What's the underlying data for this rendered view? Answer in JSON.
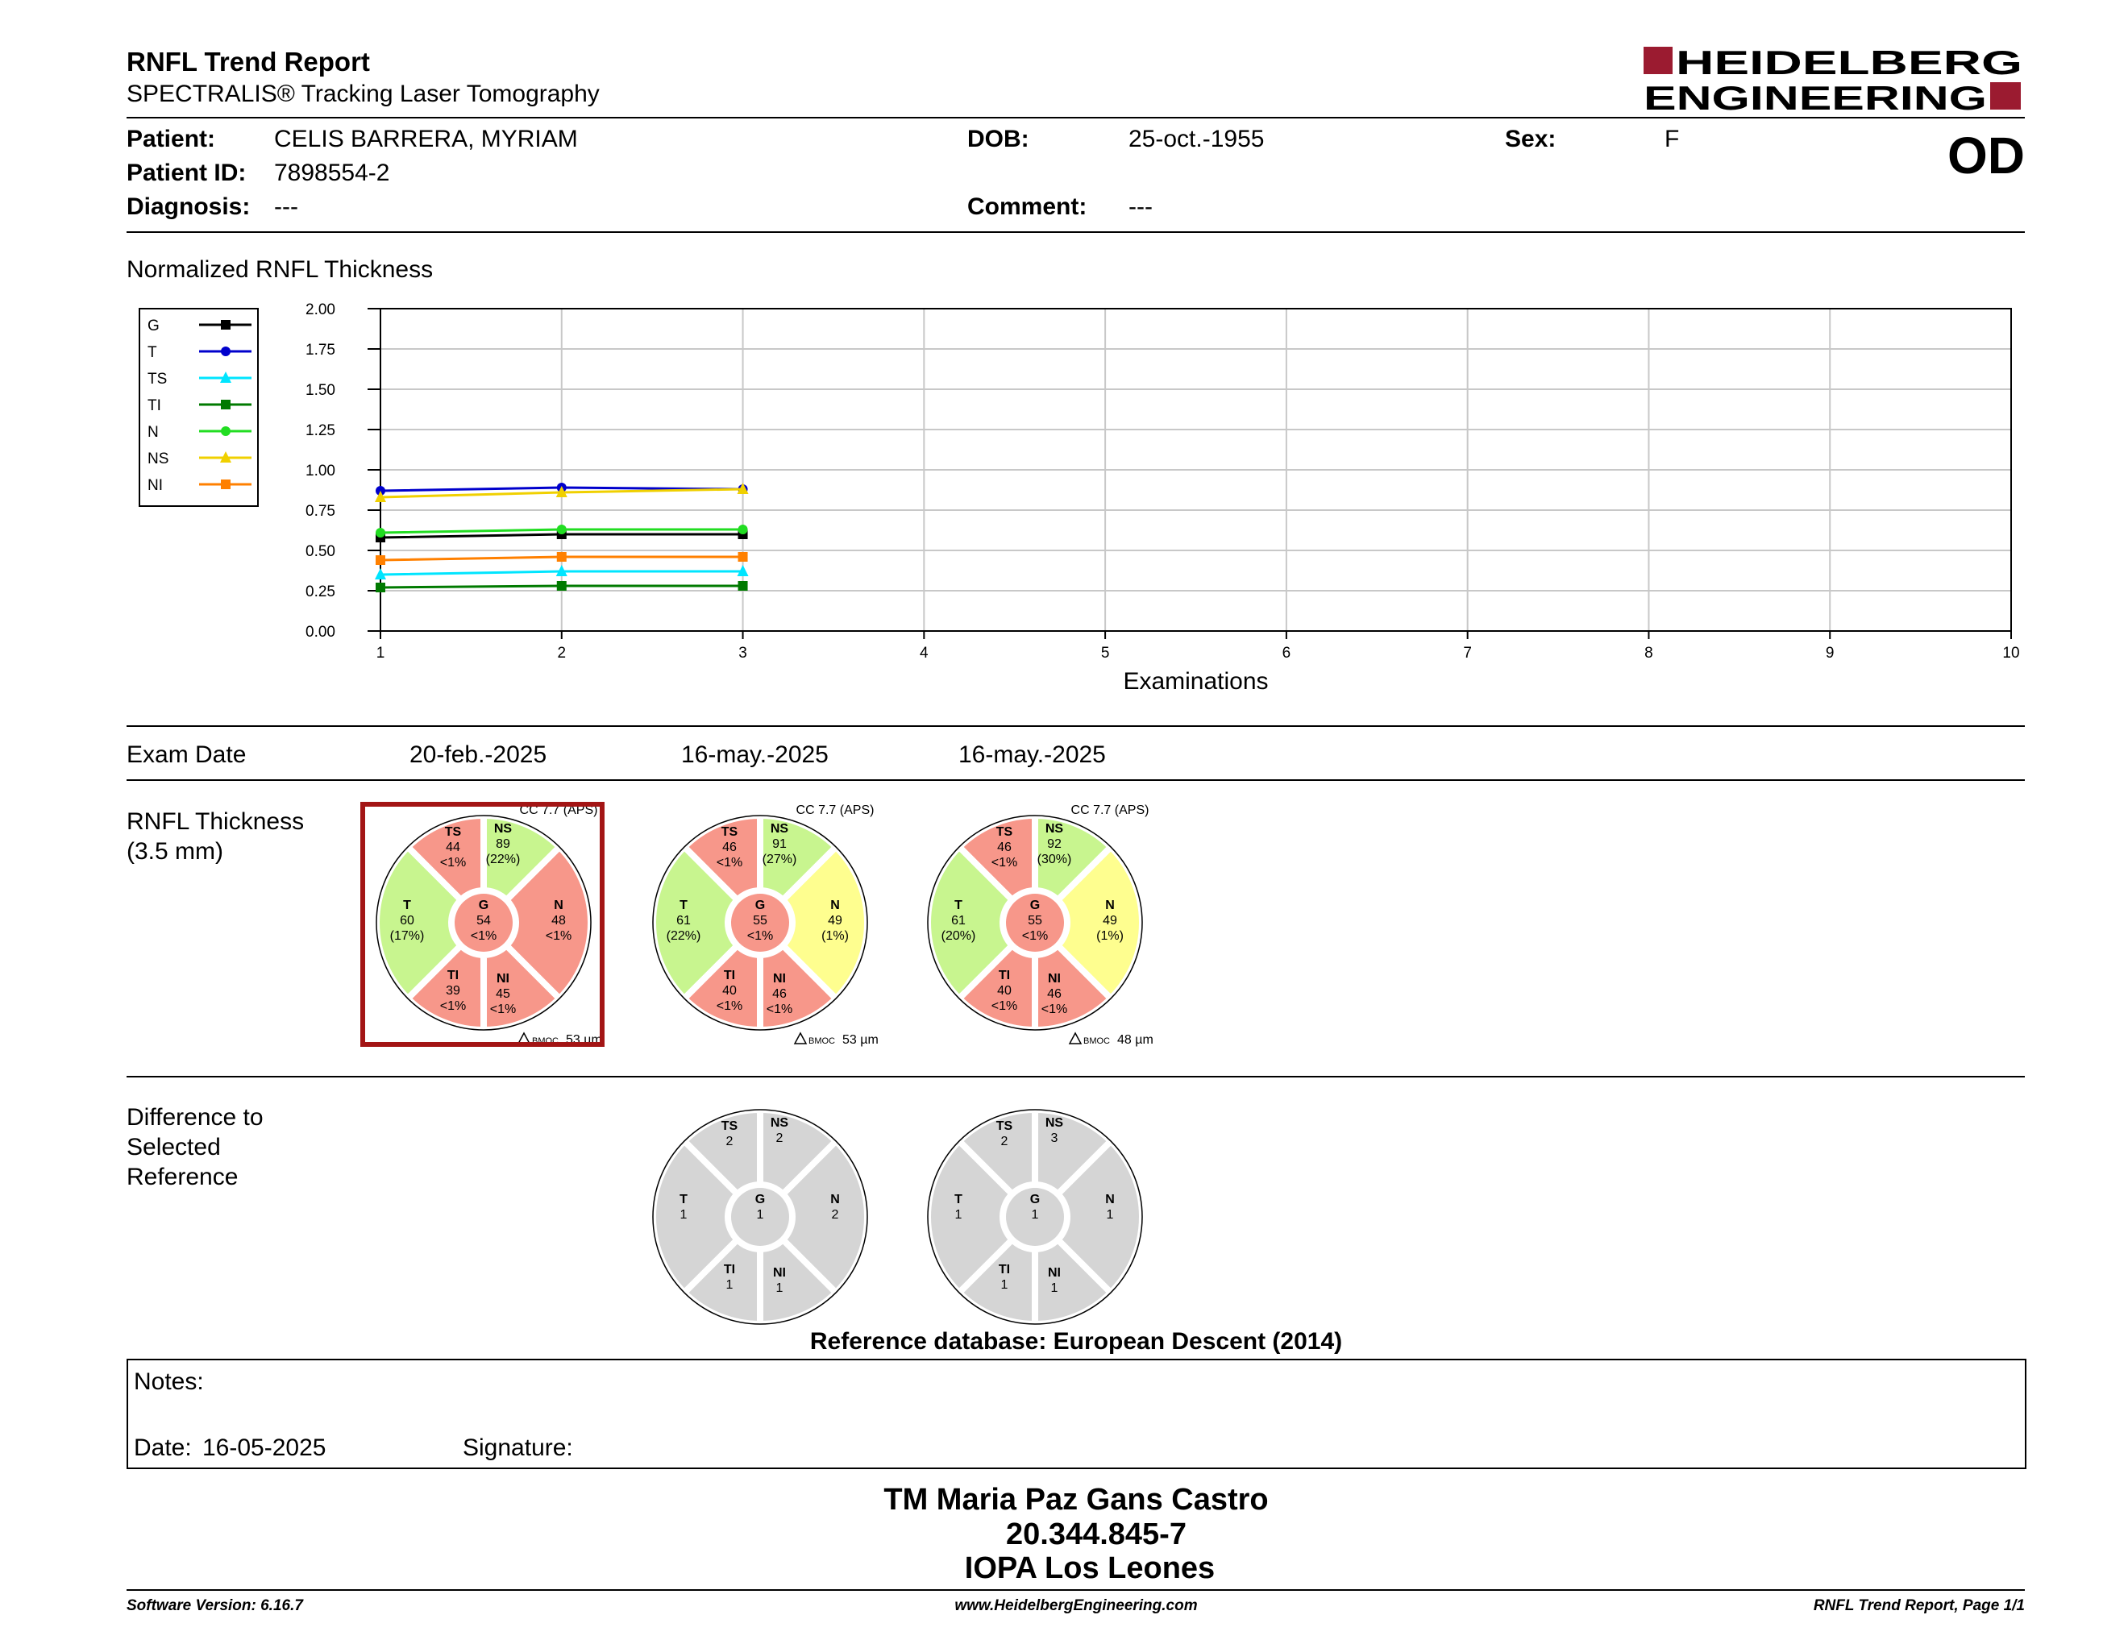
{
  "header": {
    "title": "RNFL Trend Report",
    "subtitle": "SPECTRALIS® Tracking Laser Tomography",
    "logo_line1": "HEIDELBERG",
    "logo_line2": "ENGINEERING",
    "eye": "OD",
    "brand_color": "#9b1b30"
  },
  "patient": {
    "patient_label": "Patient:",
    "patient_value": "CELIS BARRERA, MYRIAM",
    "id_label": "Patient ID:",
    "id_value": "7898554-2",
    "diagnosis_label": "Diagnosis:",
    "diagnosis_value": "---",
    "dob_label": "DOB:",
    "dob_value": "25-oct.-1955",
    "comment_label": "Comment:",
    "comment_value": "---",
    "sex_label": "Sex:",
    "sex_value": "F"
  },
  "trend": {
    "section_title": "Normalized RNFL Thickness",
    "chart_data": {
      "type": "line",
      "title": "",
      "xlabel": "Examinations",
      "ylabel": "",
      "xlim": [
        1,
        10
      ],
      "ylim": [
        0,
        2
      ],
      "x_ticks": [
        "1",
        "2",
        "3",
        "4",
        "5",
        "6",
        "7",
        "8",
        "9",
        "10"
      ],
      "y_ticks": [
        "0.00",
        "0.25",
        "0.50",
        "0.75",
        "1.00",
        "1.25",
        "1.50",
        "1.75",
        "2.00"
      ],
      "grid": true,
      "legend_position": "left",
      "x": [
        1,
        2,
        3
      ],
      "series": [
        {
          "name": "G",
          "color": "#000000",
          "marker": "square",
          "values": [
            0.58,
            0.6,
            0.6
          ]
        },
        {
          "name": "T",
          "color": "#0000cc",
          "marker": "circle",
          "values": [
            0.87,
            0.89,
            0.88
          ]
        },
        {
          "name": "TS",
          "color": "#00e5ff",
          "marker": "triangle",
          "values": [
            0.35,
            0.37,
            0.37
          ]
        },
        {
          "name": "TI",
          "color": "#007a00",
          "marker": "square",
          "values": [
            0.27,
            0.28,
            0.28
          ]
        },
        {
          "name": "N",
          "color": "#22dd22",
          "marker": "circle",
          "values": [
            0.61,
            0.63,
            0.63
          ]
        },
        {
          "name": "NS",
          "color": "#f0d000",
          "marker": "triangle",
          "values": [
            0.83,
            0.86,
            0.88
          ]
        },
        {
          "name": "NI",
          "color": "#ff8000",
          "marker": "square",
          "values": [
            0.44,
            0.46,
            0.46
          ]
        }
      ]
    }
  },
  "exam": {
    "label": "Exam Date",
    "dates": [
      "20-feb.-2025",
      "16-may.-2025",
      "16-may.-2025"
    ]
  },
  "thickness": {
    "label1": "RNFL Thickness",
    "label2": "(3.5 mm)",
    "colors": {
      "red": "#f7978a",
      "green": "#c8f58f",
      "yellow": "#fefe8f",
      "gray": "#d5d5d5",
      "selected": "#a31515"
    },
    "circles": [
      {
        "cc": "CC 7.7 (APS)",
        "bmoc_label": "BMOC",
        "bmoc_value": "53 µm",
        "selected": true,
        "sectors": {
          "TS": {
            "label": "TS",
            "value": "44",
            "pct": "<1%",
            "color": "red"
          },
          "NS": {
            "label": "NS",
            "value": "89",
            "pct": "(22%)",
            "color": "green"
          },
          "N": {
            "label": "N",
            "value": "48",
            "pct": "<1%",
            "color": "red"
          },
          "NI": {
            "label": "NI",
            "value": "45",
            "pct": "<1%",
            "color": "red"
          },
          "TI": {
            "label": "TI",
            "value": "39",
            "pct": "<1%",
            "color": "red"
          },
          "T": {
            "label": "T",
            "value": "60",
            "pct": "(17%)",
            "color": "green"
          },
          "G": {
            "label": "G",
            "value": "54",
            "pct": "<1%",
            "color": "red"
          }
        }
      },
      {
        "cc": "CC 7.7 (APS)",
        "bmoc_label": "BMOC",
        "bmoc_value": "53 µm",
        "selected": false,
        "sectors": {
          "TS": {
            "label": "TS",
            "value": "46",
            "pct": "<1%",
            "color": "red"
          },
          "NS": {
            "label": "NS",
            "value": "91",
            "pct": "(27%)",
            "color": "green"
          },
          "N": {
            "label": "N",
            "value": "49",
            "pct": "(1%)",
            "color": "yellow"
          },
          "NI": {
            "label": "NI",
            "value": "46",
            "pct": "<1%",
            "color": "red"
          },
          "TI": {
            "label": "TI",
            "value": "40",
            "pct": "<1%",
            "color": "red"
          },
          "T": {
            "label": "T",
            "value": "61",
            "pct": "(22%)",
            "color": "green"
          },
          "G": {
            "label": "G",
            "value": "55",
            "pct": "<1%",
            "color": "red"
          }
        }
      },
      {
        "cc": "CC 7.7 (APS)",
        "bmoc_label": "BMOC",
        "bmoc_value": "48 µm",
        "selected": false,
        "sectors": {
          "TS": {
            "label": "TS",
            "value": "46",
            "pct": "<1%",
            "color": "red"
          },
          "NS": {
            "label": "NS",
            "value": "92",
            "pct": "(30%)",
            "color": "green"
          },
          "N": {
            "label": "N",
            "value": "49",
            "pct": "(1%)",
            "color": "yellow"
          },
          "NI": {
            "label": "NI",
            "value": "46",
            "pct": "<1%",
            "color": "red"
          },
          "TI": {
            "label": "TI",
            "value": "40",
            "pct": "<1%",
            "color": "red"
          },
          "T": {
            "label": "T",
            "value": "61",
            "pct": "(20%)",
            "color": "green"
          },
          "G": {
            "label": "G",
            "value": "55",
            "pct": "<1%",
            "color": "red"
          }
        }
      }
    ]
  },
  "difference": {
    "label1": "Difference to",
    "label2": "Selected",
    "label3": "Reference",
    "circles": [
      {
        "sectors": {
          "TS": {
            "label": "TS",
            "value": "2"
          },
          "NS": {
            "label": "NS",
            "value": "2"
          },
          "N": {
            "label": "N",
            "value": "2"
          },
          "NI": {
            "label": "NI",
            "value": "1"
          },
          "TI": {
            "label": "TI",
            "value": "1"
          },
          "T": {
            "label": "T",
            "value": "1"
          },
          "G": {
            "label": "G",
            "value": "1"
          }
        }
      },
      {
        "sectors": {
          "TS": {
            "label": "TS",
            "value": "2"
          },
          "NS": {
            "label": "NS",
            "value": "3"
          },
          "N": {
            "label": "N",
            "value": "1"
          },
          "NI": {
            "label": "NI",
            "value": "1"
          },
          "TI": {
            "label": "TI",
            "value": "1"
          },
          "T": {
            "label": "T",
            "value": "1"
          },
          "G": {
            "label": "G",
            "value": "1"
          }
        }
      }
    ],
    "reference_db": "Reference database: European Descent (2014)"
  },
  "notes": {
    "notes_label": "Notes:",
    "date_label": "Date:",
    "date_value": "16-05-2025",
    "signature_label": "Signature:"
  },
  "signature": {
    "name": "TM Maria Paz Gans Castro",
    "rut": "20.344.845-7",
    "institution": "IOPA Los Leones"
  },
  "footer": {
    "version": "Software Version: 6.16.7",
    "website": "www.HeidelbergEngineering.com",
    "page": "RNFL Trend Report, Page 1/1"
  }
}
